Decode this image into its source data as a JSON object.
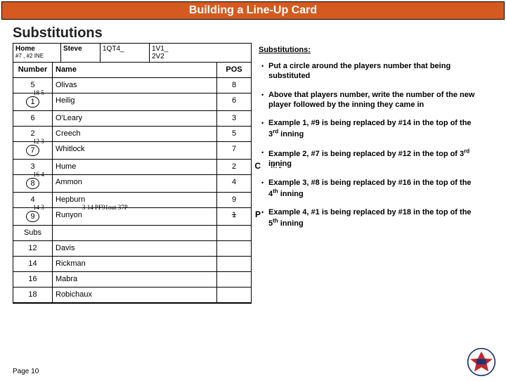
{
  "header": "Building a Line-Up Card",
  "subhead": "Substitutions",
  "top": {
    "team_label": "Home",
    "team_sub": "#7 , #2 INE",
    "coach": "Steve",
    "gm1": "1QT4_",
    "gm2a": "1V1_",
    "gm2b": "2V2"
  },
  "cols": {
    "num": "Number",
    "name": "Name",
    "pos": "POS"
  },
  "rows": [
    {
      "num": "5",
      "circle": false,
      "name": "Olivas",
      "pos": "8",
      "over_num": "",
      "over_name": ""
    },
    {
      "num": "1",
      "circle": true,
      "name": "Heilig",
      "pos": "6",
      "over_num": "18  5",
      "over_name": ""
    },
    {
      "num": "6",
      "circle": false,
      "name": "O'Leary",
      "pos": "3",
      "over_num": "",
      "over_name": ""
    },
    {
      "num": "2",
      "circle": false,
      "name": "Creech",
      "pos": "5",
      "over_num": "",
      "over_name": ""
    },
    {
      "num": "7",
      "circle": true,
      "name": "Whitlock",
      "pos": "7",
      "over_num": "12  3",
      "over_name": ""
    },
    {
      "num": "3",
      "circle": false,
      "name": "Hume",
      "pos": "2",
      "over_num": "",
      "over_name": "",
      "posnote": "C",
      "outside": "IC 2"
    },
    {
      "num": "8",
      "circle": true,
      "name": "Ammon",
      "pos": "4",
      "over_num": "16  4",
      "over_name": ""
    },
    {
      "num": "4",
      "circle": false,
      "name": "Hepburn",
      "pos": "9",
      "over_num": "",
      "over_name": ""
    },
    {
      "num": "9",
      "circle": true,
      "name": "Runyon",
      "pos": "1",
      "over_num": "14  3",
      "over_name": "3  14 PF91out 37P",
      "strk": true,
      "posnote": "P"
    },
    {
      "num": "Subs",
      "circle": false,
      "name": "",
      "pos": "",
      "over_num": "",
      "over_name": ""
    },
    {
      "num": "12",
      "circle": false,
      "name": "Davis",
      "pos": "",
      "over_num": "",
      "over_name": ""
    },
    {
      "num": "14",
      "circle": false,
      "name": "Rickman",
      "pos": "",
      "over_num": "",
      "over_name": ""
    },
    {
      "num": "16",
      "circle": false,
      "name": "Mabra",
      "pos": "",
      "over_num": "",
      "over_name": ""
    },
    {
      "num": "18",
      "circle": false,
      "name": "Robichaux",
      "pos": "",
      "over_num": "",
      "over_name": ""
    }
  ],
  "right": {
    "heading": "Substitutions:",
    "items": [
      "Put a circle around the players number that being substituted",
      "Above that players number, write the number of the new player followed by the inning they came in",
      "Example 1, #9 is being replaced by #14 in the top of the 3{rd} inning",
      "Example 2, #7 is being replaced by #12 in the top of 3{rd} inning",
      "Example 3, #8 is being replaced by #16 in the top of the 4{th} inning",
      "Example 4, #1 is being replaced by #18 in the top of the 5{th} inning"
    ]
  },
  "page": "Page 10",
  "colors": {
    "header_bg": "#d55a1f",
    "header_fg": "#ffffff",
    "text": "#222222"
  }
}
